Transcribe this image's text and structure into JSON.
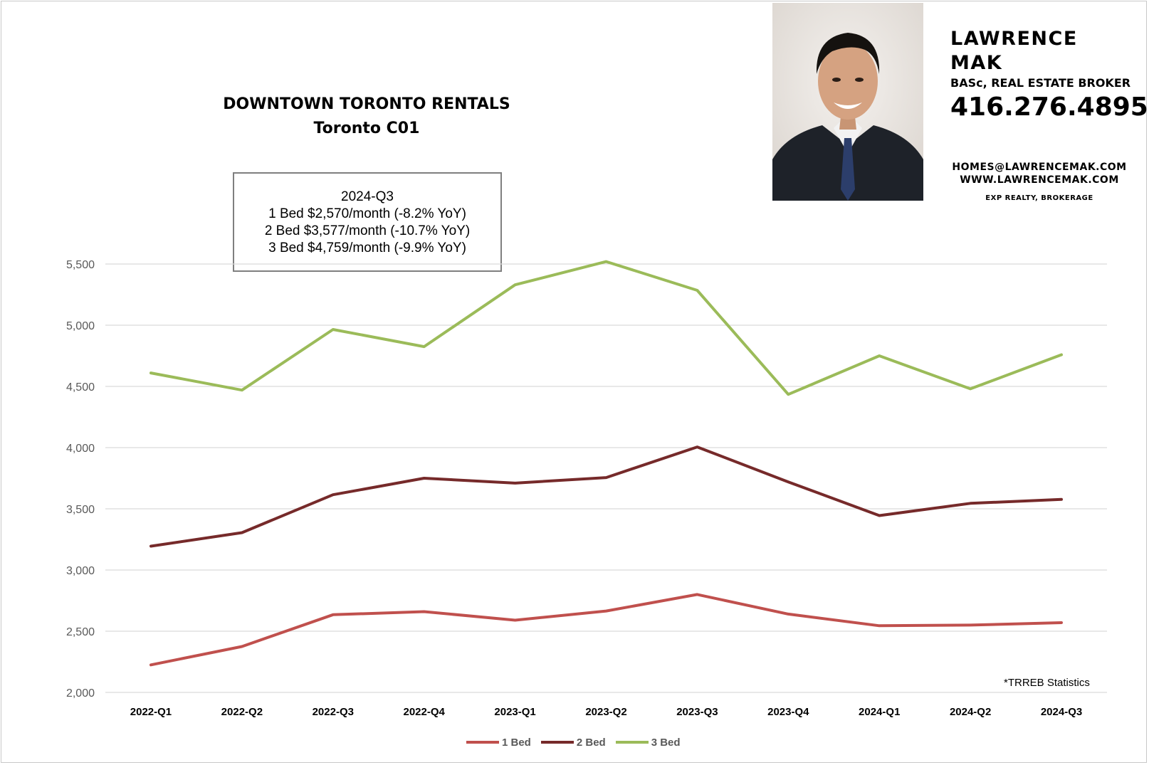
{
  "chart_data": {
    "type": "line",
    "title": "DOWNTOWN TORONTO RENTALS",
    "subtitle": "Toronto C01",
    "categories": [
      "2022-Q1",
      "2022-Q2",
      "2022-Q3",
      "2022-Q4",
      "2023-Q1",
      "2023-Q2",
      "2023-Q3",
      "2023-Q4",
      "2024-Q1",
      "2024-Q2",
      "2024-Q3"
    ],
    "series": [
      {
        "name": "1 Bed",
        "color": "#c0504d",
        "values": [
          2225,
          2375,
          2635,
          2660,
          2590,
          2665,
          2800,
          2640,
          2545,
          2550,
          2570
        ]
      },
      {
        "name": "2 Bed",
        "color": "#762a2a",
        "values": [
          3195,
          3305,
          3615,
          3750,
          3710,
          3755,
          4005,
          3720,
          3445,
          3545,
          3577
        ]
      },
      {
        "name": "3 Bed",
        "color": "#9bbb59",
        "values": [
          4610,
          4470,
          4965,
          4825,
          5330,
          5520,
          5285,
          4435,
          4750,
          4480,
          4759
        ]
      }
    ],
    "yticks": [
      "5,500",
      "5,000",
      "4,500",
      "4,000",
      "3,500",
      "3,000",
      "2,500",
      "2,000"
    ],
    "ylim": [
      2000,
      5500
    ],
    "grid": true,
    "legend": "bottom",
    "annotation": {
      "period": "2024-Q3",
      "line1": "1 Bed $2,570/month (-8.2% YoY)",
      "line2": "2 Bed $3,577/month (-10.7% YoY)",
      "line3": "3 Bed $4,759/month (-9.9% YoY)"
    },
    "source": "*TRREB Statistics"
  },
  "agent": {
    "name": "LAWRENCE MAK",
    "credentials": "BASc, REAL ESTATE BROKER",
    "phone": "416.276.4895",
    "email": "HOMES@LAWRENCEMAK.COM",
    "website": "WWW.LAWRENCEMAK.COM",
    "brokerage": "EXP REALTY, BROKERAGE"
  },
  "colors": {
    "grid": "#d9d9d9",
    "axis_text": "#595959",
    "category_text": "#000000"
  }
}
